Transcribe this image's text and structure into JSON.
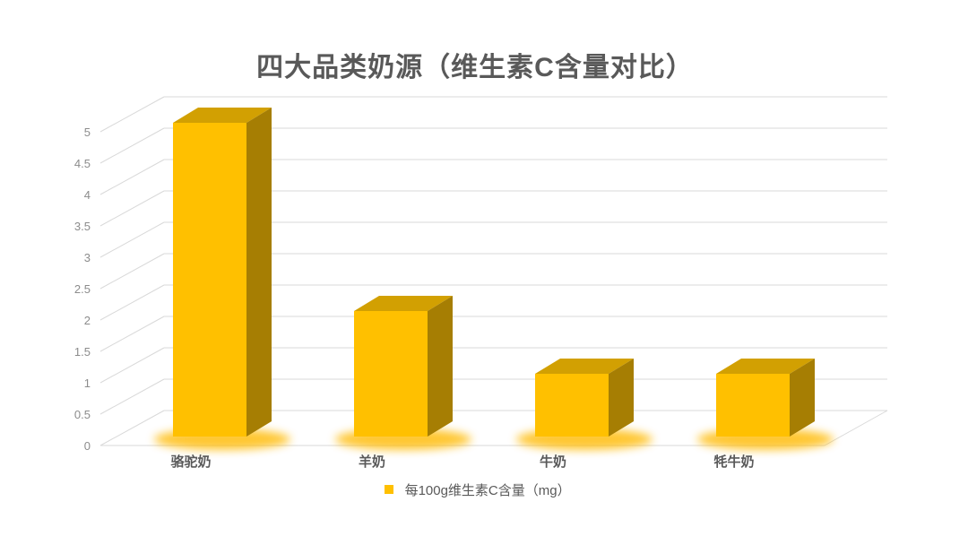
{
  "chart_data": {
    "type": "bar",
    "style": "3d-column",
    "title": "四大品类奶源（维生素C含量对比）",
    "categories": [
      "骆驼奶",
      "羊奶",
      "牛奶",
      "牦牛奶"
    ],
    "values": [
      5,
      2,
      1,
      1
    ],
    "series_name": "每100g维生素C含量（mg）",
    "legend_position": "bottom",
    "xlabel": "",
    "ylabel": "",
    "ylim": [
      0,
      5
    ],
    "ytick_step": 0.5,
    "ytick_labels": [
      "0",
      "0.5",
      "1",
      "1.5",
      "2",
      "2.5",
      "3",
      "3.5",
      "4",
      "4.5",
      "5"
    ],
    "grid": true,
    "colors": {
      "bar_front": "#FFC000",
      "bar_top": "#D2A002",
      "bar_side": "#A67E03",
      "bar_glow": "#FFB900",
      "gridline": "#D9D9D9",
      "title_text": "#595959",
      "tick_text": "#8C8C8C",
      "category_text": "#595959",
      "legend_text": "#595959"
    }
  }
}
